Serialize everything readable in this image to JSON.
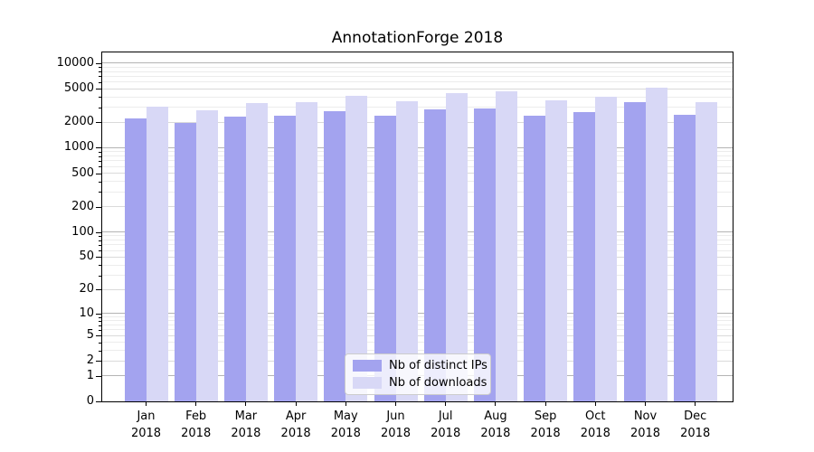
{
  "figure": {
    "title": "AnnotationForge 2018"
  },
  "chart_data": {
    "type": "bar",
    "title": "AnnotationForge 2018",
    "categories": [
      "Jan",
      "Feb",
      "Mar",
      "Apr",
      "May",
      "Jun",
      "Jul",
      "Aug",
      "Sep",
      "Oct",
      "Nov",
      "Dec"
    ],
    "x_year_label": "2018",
    "series": [
      {
        "name": "Nb of distinct IPs",
        "color": "#a3a3ef",
        "values": [
          2210,
          1970,
          2340,
          2380,
          2690,
          2410,
          2870,
          2890,
          2380,
          2620,
          3470,
          2480
        ]
      },
      {
        "name": "Nb of downloads",
        "color": "#d8d8f6",
        "values": [
          3040,
          2780,
          3380,
          3490,
          4120,
          3560,
          4410,
          4700,
          3670,
          3990,
          5200,
          3440
        ]
      }
    ],
    "xlabel": "",
    "ylabel": "",
    "y_scale": "log1p",
    "y_ticks": [
      10000,
      5000,
      2000,
      1000,
      500,
      200,
      100,
      50,
      20,
      10,
      5,
      2,
      1,
      0
    ],
    "ylim": [
      0,
      13500
    ],
    "grid": true,
    "legend_position": "lower center"
  },
  "colors": {
    "grid_power10": "#b4b4b4",
    "grid_labeled": "#dadada",
    "grid_minor": "#ececec",
    "spine": "#000000",
    "text": "#000000",
    "legend_border": "#cccccc",
    "legend_background": "rgba(255,255,255,0.8)"
  }
}
